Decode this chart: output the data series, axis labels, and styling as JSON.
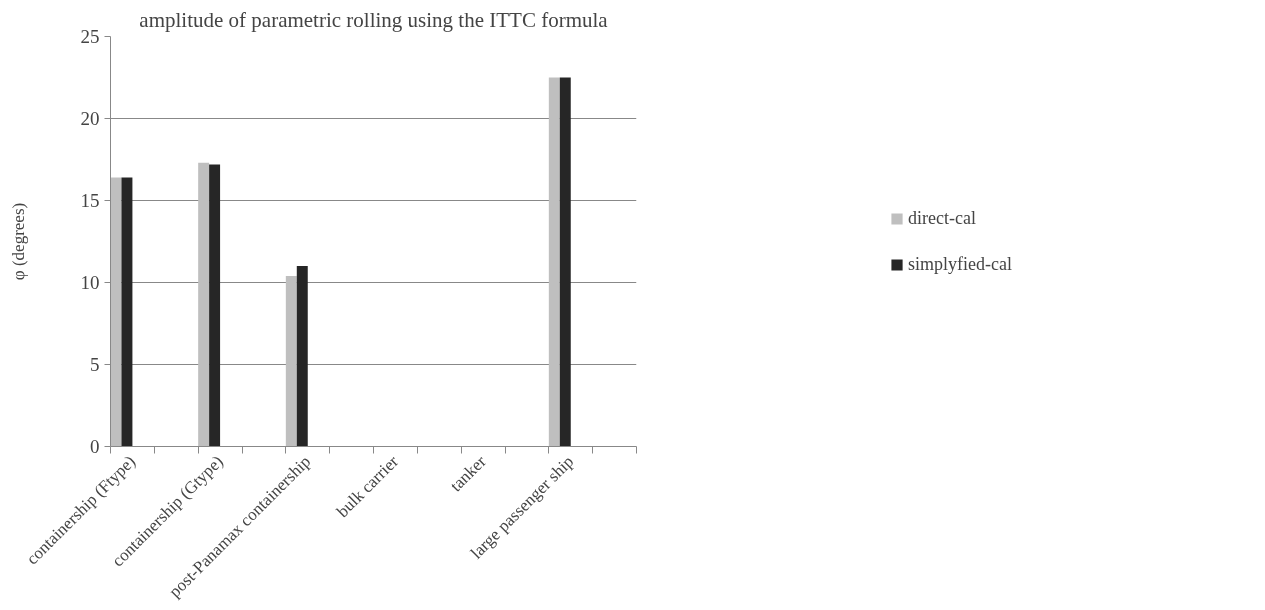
{
  "chart_data": {
    "type": "bar",
    "title": "amplitude of parametric rolling using the ITTC formula",
    "ylabel": "φ (degrees)",
    "categories": [
      "containership (Ftype)",
      "containership (Gtype)",
      "post-Panamax containership",
      "bulk carrier",
      "tanker",
      "large passenger ship"
    ],
    "series": [
      {
        "name": "direct-cal",
        "color": "#bfbfbf",
        "values": [
          16.4,
          17.3,
          10.4,
          null,
          null,
          22.5
        ]
      },
      {
        "name": "simplyfied-cal",
        "color": "#262626",
        "values": [
          16.4,
          17.2,
          11.0,
          null,
          null,
          22.5
        ]
      }
    ],
    "ylim": [
      0,
      25
    ],
    "yticks": [
      0,
      5,
      10,
      15,
      20,
      25
    ],
    "grid": "y",
    "legend": "right"
  }
}
